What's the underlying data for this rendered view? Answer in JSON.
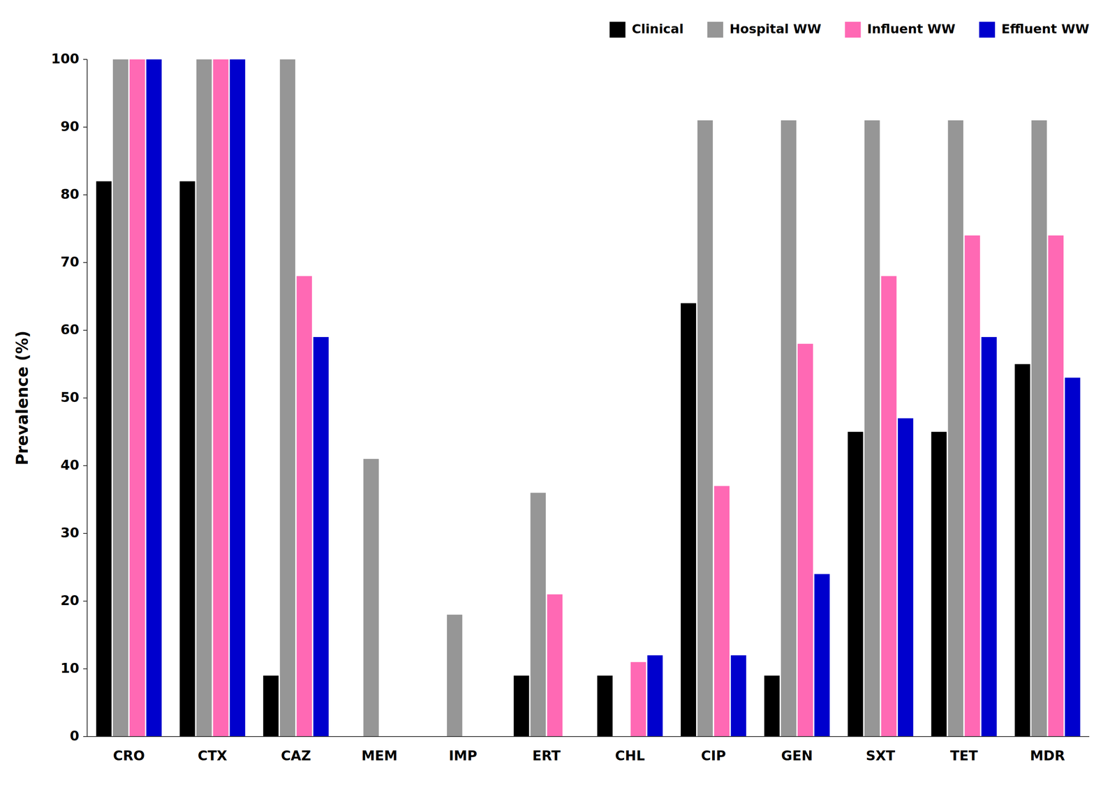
{
  "chart_data": {
    "type": "bar",
    "categories": [
      "CRO",
      "CTX",
      "CAZ",
      "MEM",
      "IMP",
      "ERT",
      "CHL",
      "CIP",
      "GEN",
      "SXT",
      "TET",
      "MDR"
    ],
    "series": [
      {
        "name": "Clinical",
        "color": "#000000",
        "values": [
          82,
          82,
          9,
          0,
          0,
          9,
          9,
          64,
          9,
          45,
          45,
          55
        ]
      },
      {
        "name": "Hospital WW",
        "color": "#969696",
        "values": [
          100,
          100,
          100,
          41,
          18,
          36,
          0,
          91,
          91,
          91,
          91,
          91
        ]
      },
      {
        "name": "Influent WW",
        "color": "#ff69b4",
        "values": [
          100,
          100,
          68,
          0,
          0,
          21,
          11,
          37,
          58,
          68,
          74,
          74
        ]
      },
      {
        "name": "Effluent WW",
        "color": "#0000cd",
        "values": [
          100,
          100,
          59,
          0,
          0,
          0,
          12,
          12,
          24,
          47,
          59,
          53
        ]
      }
    ],
    "ylabel": "Prevalence (%)",
    "ylim": [
      0,
      100
    ],
    "yticks": [
      0,
      10,
      20,
      30,
      40,
      50,
      60,
      70,
      80,
      90,
      100
    ],
    "grid": false,
    "legend": "upper right"
  }
}
